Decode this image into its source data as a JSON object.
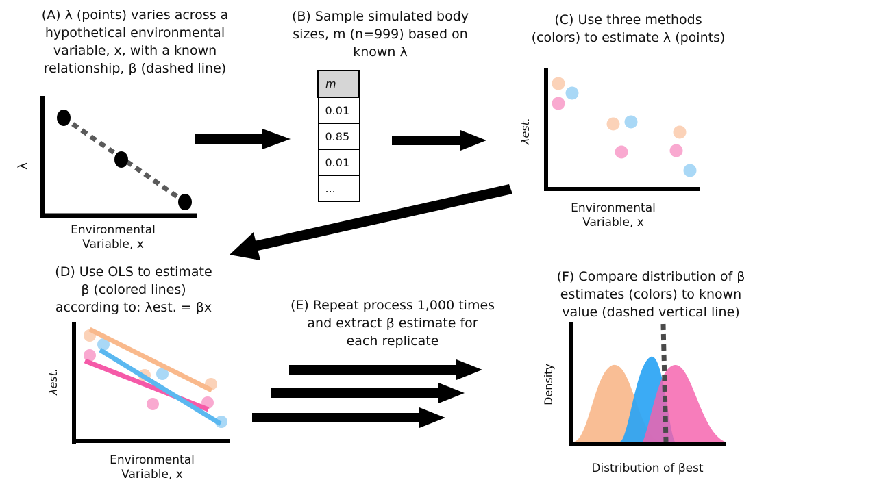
{
  "panel_a": {
    "caption_lines": [
      "(A) λ (points) varies across a",
      "hypothetical environmental",
      "variable, x, with a known",
      "relationship, β (dashed line)"
    ],
    "y_label": "λ",
    "x_label_lines": [
      "Environmental",
      "Variable, x"
    ]
  },
  "panel_b": {
    "caption_lines": [
      "(B) Sample simulated body",
      "sizes, m (n=999) based on",
      "known λ"
    ],
    "table_header": "m",
    "table_rows": [
      "0.01",
      "0.85",
      "0.01",
      "..."
    ]
  },
  "panel_c": {
    "caption_lines": [
      "(C) Use three methods",
      "(colors) to estimate λ (points)"
    ],
    "y_label": "λest.",
    "x_label_lines": [
      "Environmental",
      "Variable, x"
    ]
  },
  "panel_d": {
    "caption_lines": [
      "(D) Use OLS to estimate",
      "β (colored lines)",
      "according to: λest. = βx"
    ],
    "y_label": "λest.",
    "x_label_lines": [
      "Environmental",
      "Variable, x"
    ]
  },
  "panel_e": {
    "caption_lines": [
      "(E) Repeat process 1,000 times",
      "and extract β estimate for",
      "each replicate"
    ]
  },
  "panel_f": {
    "caption_lines": [
      "(F) Compare distribution of β",
      "estimates (colors) to known",
      "value (dashed vertical line)"
    ],
    "y_label": "Density",
    "x_label": "Distribution of βest"
  },
  "colors": {
    "method_orange": "#f9b98c",
    "method_blue": "#5bb8f0",
    "method_pink": "#f77ab8",
    "dashed_line": "#5a5a5a"
  }
}
